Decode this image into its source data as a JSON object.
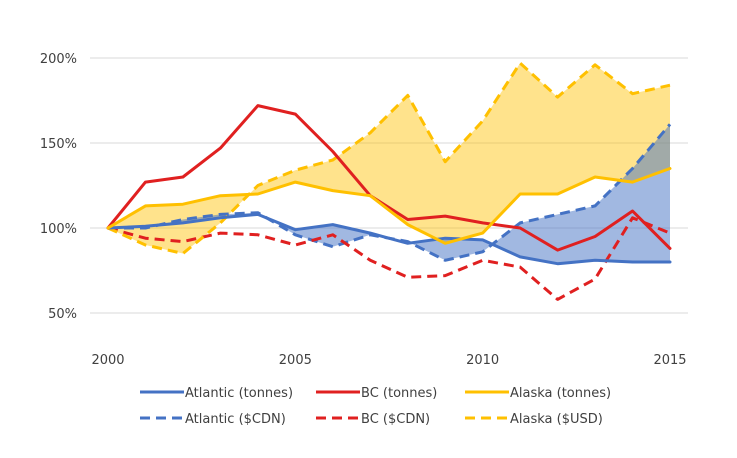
{
  "chart_data": {
    "type": "line",
    "title": "",
    "xlabel": "",
    "ylabel": "",
    "x": [
      2000,
      2001,
      2002,
      2003,
      2004,
      2005,
      2006,
      2007,
      2008,
      2009,
      2010,
      2011,
      2012,
      2013,
      2014,
      2015
    ],
    "xlim": [
      2000,
      2015
    ],
    "ylim": [
      50,
      200
    ],
    "y_unit": "%",
    "x_ticks": [
      "2000",
      "2005",
      "2010",
      "2015"
    ],
    "x_tick_values": [
      2000,
      2005,
      2010,
      2015
    ],
    "y_ticks": [
      "50%",
      "100%",
      "150%",
      "200%"
    ],
    "y_tick_values": [
      50,
      100,
      150,
      200
    ],
    "grid": "horizontal",
    "legend_position": "bottom",
    "series": [
      {
        "name": "Atlantic (tonnes)",
        "color": "#4472C4",
        "dash": "solid",
        "values": [
          100,
          101,
          103,
          106,
          108,
          99,
          102,
          97,
          91,
          94,
          93,
          83,
          79,
          81,
          80,
          80
        ]
      },
      {
        "name": "BC (tonnes)",
        "color": "#E02020",
        "dash": "solid",
        "values": [
          100,
          127,
          130,
          147,
          172,
          167,
          145,
          119,
          105,
          107,
          103,
          100,
          87,
          95,
          110,
          88
        ]
      },
      {
        "name": "Alaska (tonnes)",
        "color": "#FFC000",
        "dash": "solid",
        "values": [
          100,
          113,
          114,
          119,
          120,
          127,
          122,
          119,
          102,
          91,
          97,
          120,
          120,
          130,
          127,
          135
        ]
      },
      {
        "name": "Atlantic ($CDN)",
        "color": "#4472C4",
        "dash": "dashed",
        "values": [
          100,
          100,
          105,
          108,
          109,
          96,
          89,
          96,
          92,
          81,
          86,
          103,
          108,
          113,
          135,
          161
        ]
      },
      {
        "name": "BC ($CDN)",
        "color": "#E02020",
        "dash": "dashed",
        "values": [
          100,
          94,
          92,
          97,
          96,
          90,
          96,
          81,
          71,
          72,
          81,
          77,
          58,
          70,
          106,
          97
        ]
      },
      {
        "name": "Alaska ($USD)",
        "color": "#FFC000",
        "dash": "dashed",
        "values": [
          100,
          90,
          85,
          103,
          125,
          134,
          140,
          156,
          178,
          139,
          163,
          197,
          177,
          196,
          179,
          184
        ]
      }
    ],
    "shaded_areas": [
      {
        "between": [
          "Alaska (tonnes)",
          "Alaska ($USD)"
        ],
        "fill": "#FFC000",
        "opacity": 0.45
      },
      {
        "between": [
          "Atlantic (tonnes)",
          "Atlantic ($CDN)"
        ],
        "fill": "#4472C4",
        "opacity": 0.5
      }
    ]
  }
}
